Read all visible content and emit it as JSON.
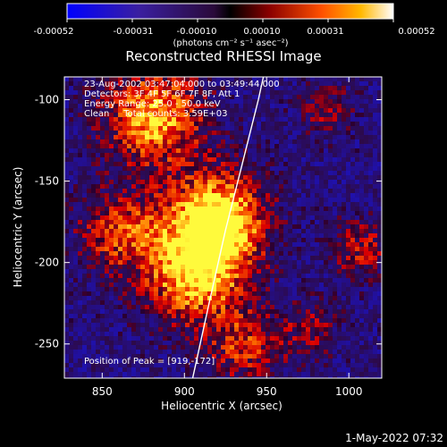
{
  "colorbar": {
    "tick_labels": [
      "-0.00052",
      "-0.00031",
      "-0.00010",
      "0.00010",
      "0.00031",
      "0.00052"
    ],
    "unit_label": "(photons cm⁻² s⁻¹ asec⁻²)",
    "range": [
      -0.00052,
      0.00052
    ]
  },
  "chart_data": {
    "type": "heatmap",
    "title": "Reconstructed RHESSI Image",
    "xlabel": "Heliocentric X (arcsec)",
    "ylabel": "Heliocentric Y (arcsec)",
    "xlim": [
      827,
      1020
    ],
    "ylim": [
      -271,
      -86
    ],
    "x_ticks": [
      850,
      900,
      950,
      1000
    ],
    "y_ticks": [
      -100,
      -150,
      -200,
      -250
    ],
    "annotations": [
      "23-Aug-2002 03:47:04.000 to 03:49:44.000",
      "Detectors: 3F 4F 5F 6F 7F 8F, Att 1",
      "Energy Range: 25.0 - 50.0 keV",
      "Clean     Total counts: 3.59E+03"
    ],
    "peak_label": "Position of Peak = [919,-172]",
    "peak": {
      "x": 919,
      "y": -172
    },
    "limb_curve": {
      "x": [
        905,
        915,
        925,
        935,
        945,
        948
      ],
      "y": [
        -271,
        -225,
        -180,
        -140,
        -100,
        -86
      ]
    },
    "colormap": "red-temperature (blue for negative)"
  },
  "footer": {
    "timestamp": "1-May-2022 07:32"
  }
}
